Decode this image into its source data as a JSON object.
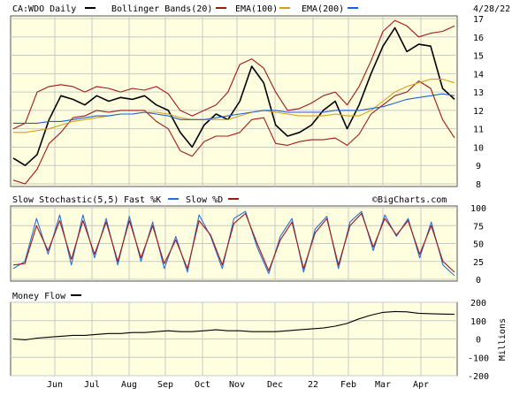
{
  "colors": {
    "bg": "#ffffff",
    "plot": "#ffffe0",
    "grid": "#c8c8c8",
    "price": "#000000",
    "bollinger": "#a01818",
    "ema100": "#d4a017",
    "ema200": "#1f5fd6",
    "fastk": "#2b6fd6",
    "slowd": "#a01818",
    "moneyflow": "#000000",
    "border": "#555555"
  },
  "header": {
    "symbol": "CA:WDO Daily",
    "date": "4/28/22"
  },
  "legend": {
    "bollinger": "Bollinger Bands(20)",
    "ema100": "EMA(100)",
    "ema200": "EMA(200)"
  },
  "stoch_legend": {
    "title": "Slow Stochastic(5,5)",
    "fast": "Fast %K",
    "slow": "Slow %D"
  },
  "mf_legend": {
    "title": "Money Flow"
  },
  "watermark": "©BigCharts.com",
  "x_axis": {
    "months": [
      "Jun",
      "Jul",
      "Aug",
      "Sep",
      "Oct",
      "Nov",
      "Dec",
      "22",
      "Feb",
      "Mar",
      "Apr"
    ]
  },
  "chart_data": [
    {
      "type": "line",
      "title": "CA:WDO Daily",
      "ylim": [
        8,
        17
      ],
      "y_ticks": [
        8,
        9,
        10,
        11,
        12,
        13,
        14,
        15,
        16,
        17
      ],
      "series": [
        {
          "name": "Price",
          "values": [
            9.4,
            9.0,
            9.6,
            11.5,
            12.8,
            12.6,
            12.3,
            12.8,
            12.5,
            12.7,
            12.6,
            12.8,
            12.3,
            12.0,
            10.8,
            10.0,
            11.2,
            11.8,
            11.5,
            12.5,
            14.4,
            13.5,
            11.2,
            10.6,
            10.8,
            11.2,
            12.0,
            12.5,
            11.0,
            12.3,
            14.0,
            15.5,
            16.5,
            15.2,
            15.6,
            15.5,
            13.2,
            12.6
          ]
        },
        {
          "name": "Bollinger Bands(20)",
          "values": [
            8.2,
            8.0,
            8.8,
            10.2,
            10.8,
            11.6,
            11.7,
            12.0,
            11.9,
            12.0,
            12.0,
            12.0,
            11.4,
            11.0,
            9.8,
            9.5,
            10.3,
            10.6,
            10.6,
            10.8,
            11.5,
            11.6,
            10.2,
            10.1,
            10.3,
            10.4,
            10.4,
            10.5,
            10.1,
            10.7,
            11.8,
            12.3,
            12.8,
            13.0,
            13.6,
            13.2,
            11.5,
            10.5
          ]
        },
        {
          "name": "Bollinger Bands(20)",
          "values": [
            11.0,
            11.3,
            13.0,
            13.3,
            13.4,
            13.3,
            13.0,
            13.3,
            13.2,
            13.0,
            13.2,
            13.1,
            13.3,
            12.9,
            12.0,
            11.7,
            12.0,
            12.3,
            13.0,
            14.5,
            14.8,
            14.3,
            13.0,
            12.0,
            12.1,
            12.4,
            12.8,
            13.0,
            12.3,
            13.3,
            14.7,
            16.3,
            16.9,
            16.6,
            16.0,
            16.2,
            16.3,
            16.6
          ]
        },
        {
          "name": "EMA(100)",
          "values": [
            10.8,
            10.8,
            10.9,
            11.0,
            11.2,
            11.4,
            11.5,
            11.6,
            11.7,
            11.8,
            11.8,
            11.9,
            11.9,
            11.8,
            11.6,
            11.5,
            11.5,
            11.5,
            11.5,
            11.7,
            11.9,
            12.0,
            11.9,
            11.8,
            11.7,
            11.7,
            11.7,
            11.8,
            11.7,
            11.7,
            12.0,
            12.5,
            13.0,
            13.3,
            13.5,
            13.7,
            13.7,
            13.5
          ]
        },
        {
          "name": "EMA(200)",
          "values": [
            11.3,
            11.3,
            11.3,
            11.4,
            11.4,
            11.5,
            11.6,
            11.7,
            11.7,
            11.8,
            11.8,
            11.9,
            11.8,
            11.7,
            11.5,
            11.5,
            11.5,
            11.6,
            11.7,
            11.8,
            11.9,
            12.0,
            12.0,
            11.9,
            11.9,
            11.9,
            11.9,
            12.0,
            12.0,
            12.0,
            12.1,
            12.2,
            12.4,
            12.6,
            12.7,
            12.8,
            12.9,
            12.8
          ]
        }
      ]
    },
    {
      "type": "line",
      "title": "Slow Stochastic(5,5)",
      "ylim": [
        0,
        100
      ],
      "y_ticks": [
        0,
        25,
        50,
        75,
        100
      ],
      "series": [
        {
          "name": "Fast %K",
          "values": [
            15,
            25,
            85,
            35,
            90,
            20,
            90,
            30,
            85,
            20,
            88,
            25,
            80,
            15,
            60,
            10,
            90,
            60,
            15,
            85,
            95,
            45,
            8,
            60,
            85,
            10,
            70,
            88,
            15,
            80,
            95,
            40,
            90,
            60,
            85,
            30,
            80,
            20,
            5
          ]
        },
        {
          "name": "Slow %D",
          "values": [
            20,
            22,
            75,
            40,
            82,
            28,
            82,
            35,
            80,
            25,
            82,
            30,
            75,
            22,
            55,
            15,
            82,
            62,
            20,
            78,
            92,
            50,
            12,
            55,
            80,
            15,
            65,
            85,
            20,
            75,
            92,
            45,
            85,
            62,
            82,
            35,
            75,
            25,
            10
          ]
        }
      ]
    },
    {
      "type": "line",
      "title": "Money Flow",
      "ylabel": "Millions",
      "ylim": [
        -200,
        200
      ],
      "y_ticks": [
        -200,
        -100,
        0,
        100,
        200
      ],
      "series": [
        {
          "name": "Money Flow",
          "values": [
            0,
            -5,
            5,
            10,
            15,
            20,
            20,
            25,
            30,
            30,
            35,
            35,
            40,
            45,
            40,
            40,
            45,
            50,
            45,
            45,
            40,
            40,
            40,
            45,
            50,
            55,
            60,
            70,
            85,
            110,
            130,
            145,
            150,
            148,
            140,
            138,
            136,
            135
          ]
        }
      ]
    }
  ]
}
